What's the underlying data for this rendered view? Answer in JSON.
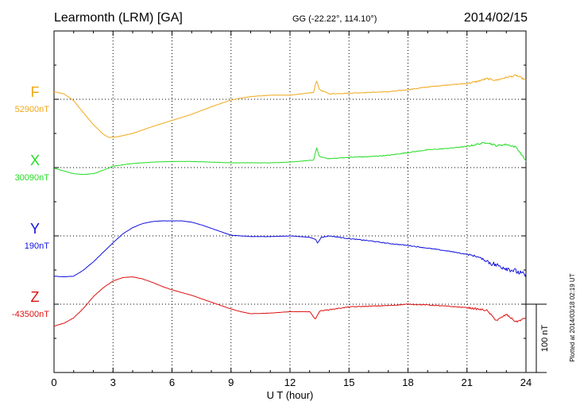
{
  "header": {
    "title": "Learmonth (LRM)  [GA]",
    "coords": "GG (-22.22°, 114.10°)",
    "date": "2014/02/15"
  },
  "footer": {
    "plotted": "Plotted at 2014/03/18 02:19 UT",
    "scale_label": "100 nT"
  },
  "chart_data": {
    "type": "line",
    "title": "Learmonth (LRM)  [GA]",
    "xlabel": "U T (hour)",
    "ylabel": "",
    "xlim": [
      0,
      24
    ],
    "xticks": [
      "0",
      "3",
      "6",
      "9",
      "12",
      "15",
      "18",
      "21",
      "24"
    ],
    "units": "nT",
    "scale_bar_nT": 100,
    "grid": true,
    "series": [
      {
        "name": "F",
        "baseline_label": "52900nT",
        "baseline": 52900,
        "color": "#f0a818",
        "x": [
          0,
          0.5,
          1,
          1.5,
          2,
          2.5,
          2.8,
          3.2,
          4,
          5,
          6,
          7,
          8,
          9,
          10,
          11,
          12,
          13.2,
          13.35,
          13.5,
          14,
          15,
          16,
          17,
          18,
          19,
          20,
          21,
          21.5,
          22,
          22.5,
          23,
          23.5,
          24
        ],
        "values": [
          52911,
          52908,
          52898,
          52880,
          52863,
          52849,
          52844,
          52845,
          52850,
          52860,
          52869,
          52878,
          52889,
          52899,
          52904,
          52906,
          52906,
          52910,
          52928,
          52914,
          52908,
          52909,
          52910,
          52911,
          52914,
          52918,
          52921,
          52923,
          52926,
          52930,
          52928,
          52932,
          52935,
          52928
        ]
      },
      {
        "name": "X",
        "baseline_label": "30090nT",
        "baseline": 30090,
        "color": "#22dd22",
        "x": [
          0,
          0.5,
          1,
          1.5,
          2,
          2.5,
          3,
          4,
          5,
          6,
          7,
          8,
          9,
          10,
          11,
          12,
          13.2,
          13.35,
          13.5,
          14,
          15,
          16,
          17,
          18,
          19,
          20,
          21,
          21.5,
          22,
          22.5,
          23,
          23.5,
          24
        ],
        "values": [
          30089,
          30085,
          30081,
          30080,
          30081,
          30086,
          30092,
          30096,
          30098,
          30099,
          30099,
          30098,
          30097,
          30097,
          30097,
          30098,
          30101,
          30119,
          30106,
          30103,
          30105,
          30106,
          30108,
          30112,
          30116,
          30118,
          30121,
          30124,
          30127,
          30122,
          30124,
          30120,
          30100
        ]
      },
      {
        "name": "Y",
        "baseline_label": "190nT",
        "baseline": 190,
        "color": "#1111dd",
        "x": [
          0,
          0.5,
          1,
          1.5,
          2,
          2.5,
          3,
          3.5,
          4,
          4.5,
          5,
          5.5,
          6,
          6.5,
          7,
          7.5,
          8,
          8.5,
          9,
          10,
          11,
          12,
          13,
          13.3,
          13.4,
          13.6,
          14,
          15,
          16,
          17,
          18,
          19,
          20,
          21,
          21.5,
          22,
          22.5,
          23,
          23.5,
          24
        ],
        "values": [
          131,
          130,
          131,
          140,
          152,
          166,
          180,
          193,
          202,
          208,
          211,
          212,
          212,
          212,
          210,
          206,
          201,
          196,
          191,
          189,
          189,
          190,
          188,
          185,
          180,
          188,
          190,
          186,
          183,
          179,
          176,
          172,
          168,
          163,
          160,
          153,
          147,
          143,
          138,
          132
        ]
      },
      {
        "name": "Z",
        "baseline_label": "-43500nT",
        "baseline": -43500,
        "color": "#dd1111",
        "x": [
          0,
          0.5,
          1,
          1.5,
          2,
          2.5,
          3,
          3.5,
          4,
          4.5,
          5,
          5.5,
          6,
          7,
          8,
          9,
          9.5,
          10,
          11,
          12,
          13,
          13.3,
          13.5,
          14,
          15,
          16,
          17,
          18,
          19,
          20,
          21,
          22,
          22.5,
          23,
          23.5,
          24
        ],
        "values": [
          -43532,
          -43528,
          -43520,
          -43506,
          -43489,
          -43476,
          -43466,
          -43461,
          -43460,
          -43463,
          -43468,
          -43474,
          -43479,
          -43487,
          -43497,
          -43507,
          -43511,
          -43514,
          -43513,
          -43511,
          -43511,
          -43522,
          -43510,
          -43508,
          -43504,
          -43503,
          -43502,
          -43500,
          -43501,
          -43503,
          -43505,
          -43509,
          -43524,
          -43515,
          -43526,
          -43520
        ]
      }
    ]
  }
}
